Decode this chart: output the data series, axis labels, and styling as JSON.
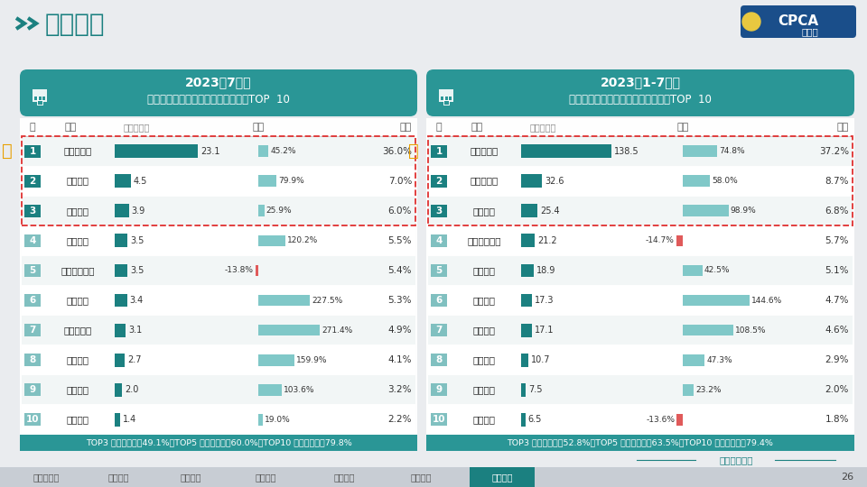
{
  "bg_color": "#eaecef",
  "title_main": "企业竞争",
  "panel1": {
    "title_line1": "2023年7月份",
    "title_line2": "新能源狭义乘用车厂商零售销量排名TOP  10",
    "ranks": [
      1,
      2,
      3,
      4,
      5,
      6,
      7,
      8,
      9,
      10
    ],
    "companies": [
      "比亚迪汽车",
      "广汽埃安",
      "吉利汽车",
      "长安汽车",
      "上汽通用五菱",
      "理想汽车",
      "特斯拉中国",
      "长城汽车",
      "蔚来汽车",
      "零跑汽车"
    ],
    "sales": [
      23.1,
      4.5,
      3.9,
      3.5,
      3.5,
      3.4,
      3.1,
      2.7,
      2.0,
      1.4
    ],
    "sales_labels": [
      "23.1",
      "4.5",
      "3.9",
      "3.5",
      "3.5",
      "3.4",
      "3.1",
      "2.7",
      "2.0",
      "1.4"
    ],
    "yoy": [
      45.2,
      79.9,
      25.9,
      120.2,
      -13.8,
      227.5,
      271.4,
      159.9,
      103.6,
      19.0
    ],
    "yoy_labels": [
      "45.2%",
      "79.9%",
      "25.9%",
      "120.2%",
      "-13.8%",
      "227.5%",
      "271.4%",
      "159.9%",
      "103.6%",
      "19.0%"
    ],
    "share": [
      "36.0%",
      "7.0%",
      "6.0%",
      "5.5%",
      "5.4%",
      "5.3%",
      "4.9%",
      "4.1%",
      "3.2%",
      "2.2%"
    ],
    "footer": "TOP3 厂商份额占比49.1%，TOP5 厂商份额占比60.0%，TOP10 厂商份额占比79.8%"
  },
  "panel2": {
    "title_line1": "2023年1-7月份",
    "title_line2": "新能源狭义乘用车厂商零售销量排名TOP  10",
    "ranks": [
      1,
      2,
      3,
      4,
      5,
      6,
      7,
      8,
      9,
      10
    ],
    "companies": [
      "比亚迪汽车",
      "特斯拉中国",
      "广汽埃安",
      "上汽通用五菱",
      "吉利汽车",
      "理想汽车",
      "长安汽车",
      "长城汽车",
      "蔚来汽车",
      "哪吒汽车"
    ],
    "sales": [
      138.5,
      32.6,
      25.4,
      21.2,
      18.9,
      17.3,
      17.1,
      10.7,
      7.5,
      6.5
    ],
    "sales_labels": [
      "138.5",
      "32.6",
      "25.4",
      "21.2",
      "18.9",
      "17.3",
      "17.1",
      "10.7",
      "7.5",
      "6.5"
    ],
    "yoy": [
      74.8,
      58.0,
      98.9,
      -14.7,
      42.5,
      144.6,
      108.5,
      47.3,
      23.2,
      -13.6
    ],
    "yoy_labels": [
      "74.8%",
      "58.0%",
      "98.9%",
      "-14.7%",
      "42.5%",
      "144.6%",
      "108.5%",
      "47.3%",
      "23.2%",
      "-13.6%"
    ],
    "share": [
      "37.2%",
      "8.7%",
      "6.8%",
      "5.7%",
      "5.1%",
      "4.7%",
      "4.6%",
      "2.9%",
      "2.0%",
      "1.8%"
    ],
    "footer": "TOP3 厂商份额占比52.8%，TOP5 厂商份额占比63.5%，TOP10 厂商份额占比79.4%"
  },
  "teal_dark": "#1b8080",
  "teal_header": "#2a9696",
  "teal_bar_dark": "#1b8080",
  "teal_bar_light": "#80c8c8",
  "teal_rank_light": "#80c0c0",
  "red_bar": "#e05a5a",
  "footer_bg": "#2a9696",
  "white": "#ffffff",
  "nav_items": [
    "新能源市场",
    "技术类型",
    "车型大类",
    "品牌定位",
    "细分定位",
    "价格定位",
    "企业竞争"
  ],
  "active_nav": "企业竞争",
  "page_num": "26",
  "deep_report": "深度分析报告"
}
